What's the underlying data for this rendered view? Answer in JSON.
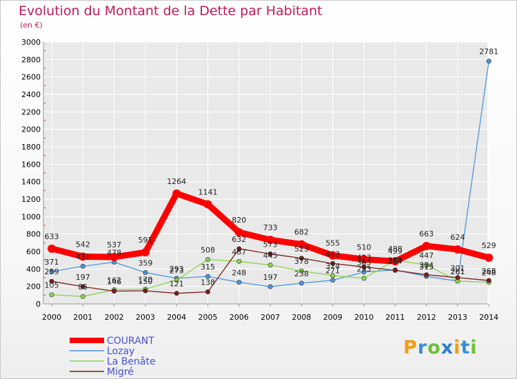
{
  "header": {
    "title": "Evolution du Montant de la Dette par Habitant",
    "subtitle": "(en €)"
  },
  "logo": {
    "text": "Proxiti"
  },
  "colors": {
    "title": "#c2185b",
    "axis_text": "#000000",
    "grid": "#ffffff",
    "axis": "#999999",
    "tick_marks": "#e03030"
  },
  "chart_data": {
    "type": "line",
    "title": "Evolution du Montant de la Dette par Habitant",
    "subtitle": "(en €)",
    "xlabel": "",
    "ylabel": "",
    "x": [
      "2000",
      "2001",
      "2002",
      "2003",
      "2004",
      "2005",
      "2006",
      "2007",
      "2008",
      "2009",
      "2010",
      "2011",
      "2012",
      "2013",
      "2014"
    ],
    "ylim": [
      0,
      3000
    ],
    "yticks": [
      0,
      200,
      400,
      600,
      800,
      1000,
      1200,
      1400,
      1600,
      1800,
      2000,
      2200,
      2400,
      2600,
      2800,
      3000
    ],
    "grid": true,
    "legend_position": "bottom-left",
    "series": [
      {
        "name": "COURANT",
        "color": "#ff0000",
        "values": [
          633,
          542,
          537,
          591,
          1264,
          1141,
          820,
          733,
          682,
          555,
          510,
          488,
          663,
          624,
          529
        ],
        "labels": [
          "633",
          "542",
          "537",
          "591",
          "1264",
          "1141",
          "820",
          "733",
          "682",
          "555",
          "510",
          "488",
          "663",
          "624",
          "529"
        ]
      },
      {
        "name": "Lozay",
        "color": "#4d94d8",
        "values": [
          371,
          431,
          478,
          359,
          293,
          315,
          248,
          197,
          238,
          271,
          365,
          389,
          315,
          261,
          2781
        ],
        "labels": [
          "371",
          "431",
          "478",
          "359",
          "293",
          "315",
          "248",
          "197",
          "238",
          "271",
          "365",
          "389",
          "315",
          "261",
          "2781"
        ]
      },
      {
        "name": "La Benâte",
        "color": "#88d44a",
        "values": [
          105,
          85,
          162,
          170,
          273,
          508,
          487,
          445,
          378,
          324,
          293,
          499,
          447,
          261,
          248
        ],
        "labels": [
          "105",
          "85",
          "162",
          "170",
          "273",
          "508",
          "487",
          "445",
          "378",
          "324",
          "293",
          "499",
          "447",
          "261",
          "248"
        ]
      },
      {
        "name": "Migré",
        "color": "#7b1a1a",
        "values": [
          259,
          197,
          146,
          150,
          121,
          138,
          632,
          573,
          523,
          463,
          423,
          384,
          334,
          301,
          268
        ],
        "labels": [
          "259",
          "197",
          "146",
          "150",
          "121",
          "138",
          "632",
          "573",
          "523",
          "463",
          "423",
          "384",
          "334",
          "301",
          "268"
        ]
      }
    ]
  }
}
